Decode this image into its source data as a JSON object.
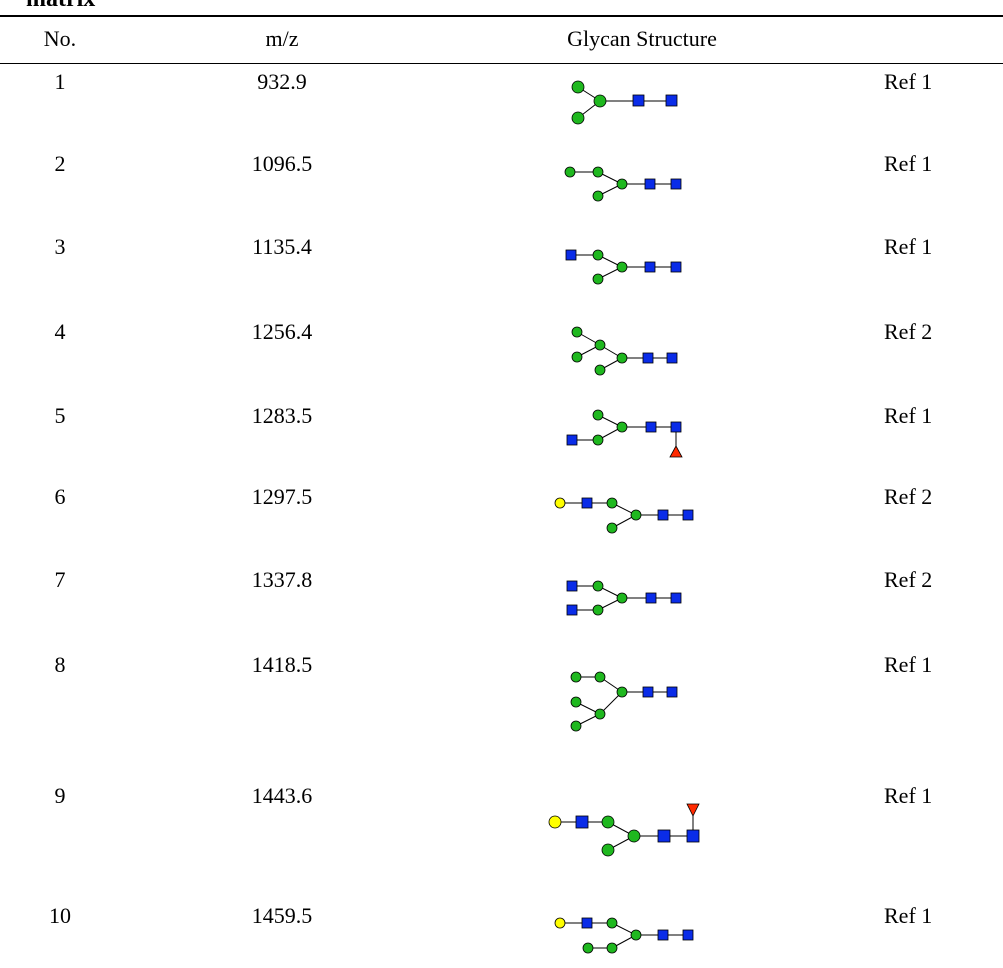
{
  "caption": "matrix",
  "headers": {
    "no": "No.",
    "mz": "m/z",
    "structure": "Glycan Structure"
  },
  "rows": [
    {
      "no": "1",
      "mz": "932.9",
      "ref": "Ref 1",
      "structure_icon": "glycan-structure-1"
    },
    {
      "no": "2",
      "mz": "1096.5",
      "ref": "Ref 1",
      "structure_icon": "glycan-structure-2"
    },
    {
      "no": "3",
      "mz": "1135.4",
      "ref": "Ref 1",
      "structure_icon": "glycan-structure-3"
    },
    {
      "no": "4",
      "mz": "1256.4",
      "ref": "Ref 2",
      "structure_icon": "glycan-structure-4"
    },
    {
      "no": "5",
      "mz": "1283.5",
      "ref": "Ref 1",
      "structure_icon": "glycan-structure-5"
    },
    {
      "no": "6",
      "mz": "1297.5",
      "ref": "Ref 2",
      "structure_icon": "glycan-structure-6"
    },
    {
      "no": "7",
      "mz": "1337.8",
      "ref": "Ref 2",
      "structure_icon": "glycan-structure-7"
    },
    {
      "no": "8",
      "mz": "1418.5",
      "ref": "Ref 1",
      "structure_icon": "glycan-structure-8"
    },
    {
      "no": "9",
      "mz": "1443.6",
      "ref": "Ref 1",
      "structure_icon": "glycan-structure-9"
    },
    {
      "no": "10",
      "mz": "1459.5",
      "ref": "Ref 1",
      "structure_icon": "glycan-structure-10"
    }
  ],
  "colors": {
    "hexose_circle": "#1fb81f",
    "hexnac_square": "#0a2ce8",
    "galactose_circle": "#ffff00",
    "fucose_triangle": "#ff2a00"
  }
}
